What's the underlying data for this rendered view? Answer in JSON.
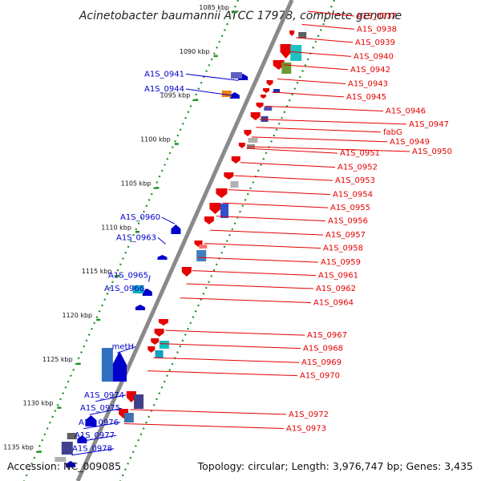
{
  "title": "Acinetobacter baumannii ATCC 17978, complete genome",
  "footer": {
    "accession": "Accession: NC_009085",
    "topology": "Topology: circular; Length: 3,976,747 bp; Genes: 3,435"
  },
  "colors": {
    "backbone": "#8a8a8a",
    "tick_dots": "#1f8f1f",
    "tick_dash": "#1f8f1f",
    "forward_strand": "#e60000",
    "reverse_strand": "#0000cc"
  },
  "ticks": [
    {
      "label": "1085 kbp",
      "kbp": 1085
    },
    {
      "label": "1090 kbp",
      "kbp": 1090
    },
    {
      "label": "1095 kbp",
      "kbp": 1095
    },
    {
      "label": "1100 kbp",
      "kbp": 1100
    },
    {
      "label": "1105 kbp",
      "kbp": 1105
    },
    {
      "label": "1110 kbp",
      "kbp": 1110
    },
    {
      "label": "1115 kbp",
      "kbp": 1115
    },
    {
      "label": "1120 kbp",
      "kbp": 1120
    },
    {
      "label": "1125 kbp",
      "kbp": 1125
    },
    {
      "label": "1130 kbp",
      "kbp": 1130
    },
    {
      "label": "1135 kbp",
      "kbp": 1135
    }
  ],
  "left_labels": [
    {
      "text": "A1S_0941",
      "kbp": 1092.6
    },
    {
      "text": "A1S_0944",
      "kbp": 1094.3
    },
    {
      "text": "A1S_0960",
      "kbp": 1108.9
    },
    {
      "text": "A1S_0963",
      "kbp": 1111.2
    },
    {
      "text": "A1S_0965",
      "kbp": 1115.5
    },
    {
      "text": "A1S_0966",
      "kbp": 1117.0
    },
    {
      "text": "metH",
      "kbp": 1123.6
    },
    {
      "text": "A1S_0974",
      "kbp": 1129.1
    },
    {
      "text": "A1S_0975",
      "kbp": 1130.6
    },
    {
      "text": "A1S_0976",
      "kbp": 1132.2
    },
    {
      "text": "A1S_0977",
      "kbp": 1133.7
    },
    {
      "text": "A1S_0978",
      "kbp": 1135.2
    }
  ],
  "right_labels": [
    {
      "text": "A1S_0937",
      "kbp": 1086.0
    },
    {
      "text": "A1S_0938",
      "kbp": 1087.5
    },
    {
      "text": "A1S_0939",
      "kbp": 1089.0
    },
    {
      "text": "A1S_0940",
      "kbp": 1090.6
    },
    {
      "text": "A1S_0942",
      "kbp": 1092.1
    },
    {
      "text": "A1S_0943",
      "kbp": 1093.7
    },
    {
      "text": "A1S_0945",
      "kbp": 1095.2
    },
    {
      "text": "A1S_0946",
      "kbp": 1096.8
    },
    {
      "text": "A1S_0947",
      "kbp": 1098.3
    },
    {
      "text": "fabG",
      "kbp": 1099.2
    },
    {
      "text": "A1S_0949",
      "kbp": 1100.3
    },
    {
      "text": "A1S_0950",
      "kbp": 1101.4
    },
    {
      "text": "A1S_0951",
      "kbp": 1101.6
    },
    {
      "text": "A1S_0952",
      "kbp": 1103.2
    },
    {
      "text": "A1S_0953",
      "kbp": 1104.7
    },
    {
      "text": "A1S_0954",
      "kbp": 1106.3
    },
    {
      "text": "A1S_0955",
      "kbp": 1107.8
    },
    {
      "text": "A1S_0956",
      "kbp": 1109.3
    },
    {
      "text": "A1S_0957",
      "kbp": 1110.9
    },
    {
      "text": "A1S_0958",
      "kbp": 1112.4
    },
    {
      "text": "A1S_0959",
      "kbp": 1114.0
    },
    {
      "text": "A1S_0961",
      "kbp": 1115.5
    },
    {
      "text": "A1S_0962",
      "kbp": 1117.0
    },
    {
      "text": "A1S_0964",
      "kbp": 1118.6
    },
    {
      "text": "A1S_0967",
      "kbp": 1122.3
    },
    {
      "text": "A1S_0968",
      "kbp": 1123.8
    },
    {
      "text": "A1S_0969",
      "kbp": 1125.4
    },
    {
      "text": "A1S_0970",
      "kbp": 1126.9
    },
    {
      "text": "A1S_0972",
      "kbp": 1131.3
    },
    {
      "text": "A1S_0973",
      "kbp": 1132.9
    }
  ]
}
